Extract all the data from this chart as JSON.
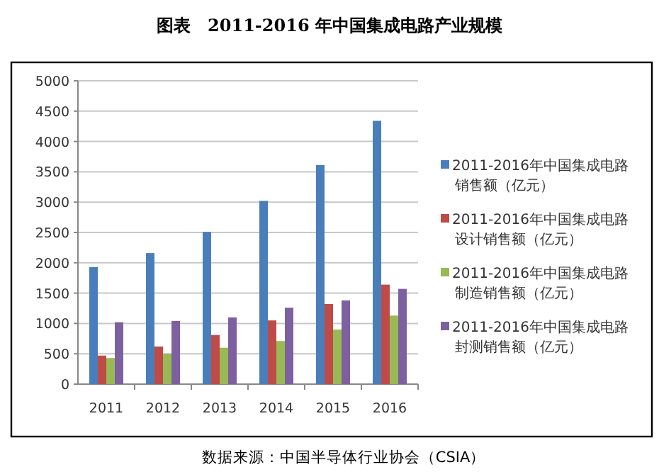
{
  "chart_data": {
    "type": "bar",
    "title": "图表　2011-2016 年中国集成电路产业规模",
    "categories": [
      "2011",
      "2012",
      "2013",
      "2014",
      "2015",
      "2016"
    ],
    "series": [
      {
        "name": "2011-2016年中国集成电路销售额（亿元）",
        "color": "#4a7ebb",
        "values": [
          1930,
          2160,
          2510,
          3020,
          3610,
          4340
        ]
      },
      {
        "name": "2011-2016年中国集成电路设计销售额（亿元）",
        "color": "#be4b48",
        "values": [
          470,
          620,
          810,
          1050,
          1320,
          1640
        ]
      },
      {
        "name": "2011-2016年中国集成电路制造销售额（亿元）",
        "color": "#98b954",
        "values": [
          430,
          500,
          600,
          710,
          900,
          1130
        ]
      },
      {
        "name": "2011-2016年中国集成电路封测销售额（亿元）",
        "color": "#7d60a0",
        "values": [
          1020,
          1040,
          1100,
          1260,
          1380,
          1570
        ]
      }
    ],
    "ylim": [
      0,
      5000
    ],
    "yticks": [
      0,
      500,
      1000,
      1500,
      2000,
      2500,
      3000,
      3500,
      4000,
      4500,
      5000
    ],
    "grid": "y",
    "legend": "right",
    "annotations": [
      "数据来源：中国半导体行业协会（CSIA）"
    ]
  }
}
